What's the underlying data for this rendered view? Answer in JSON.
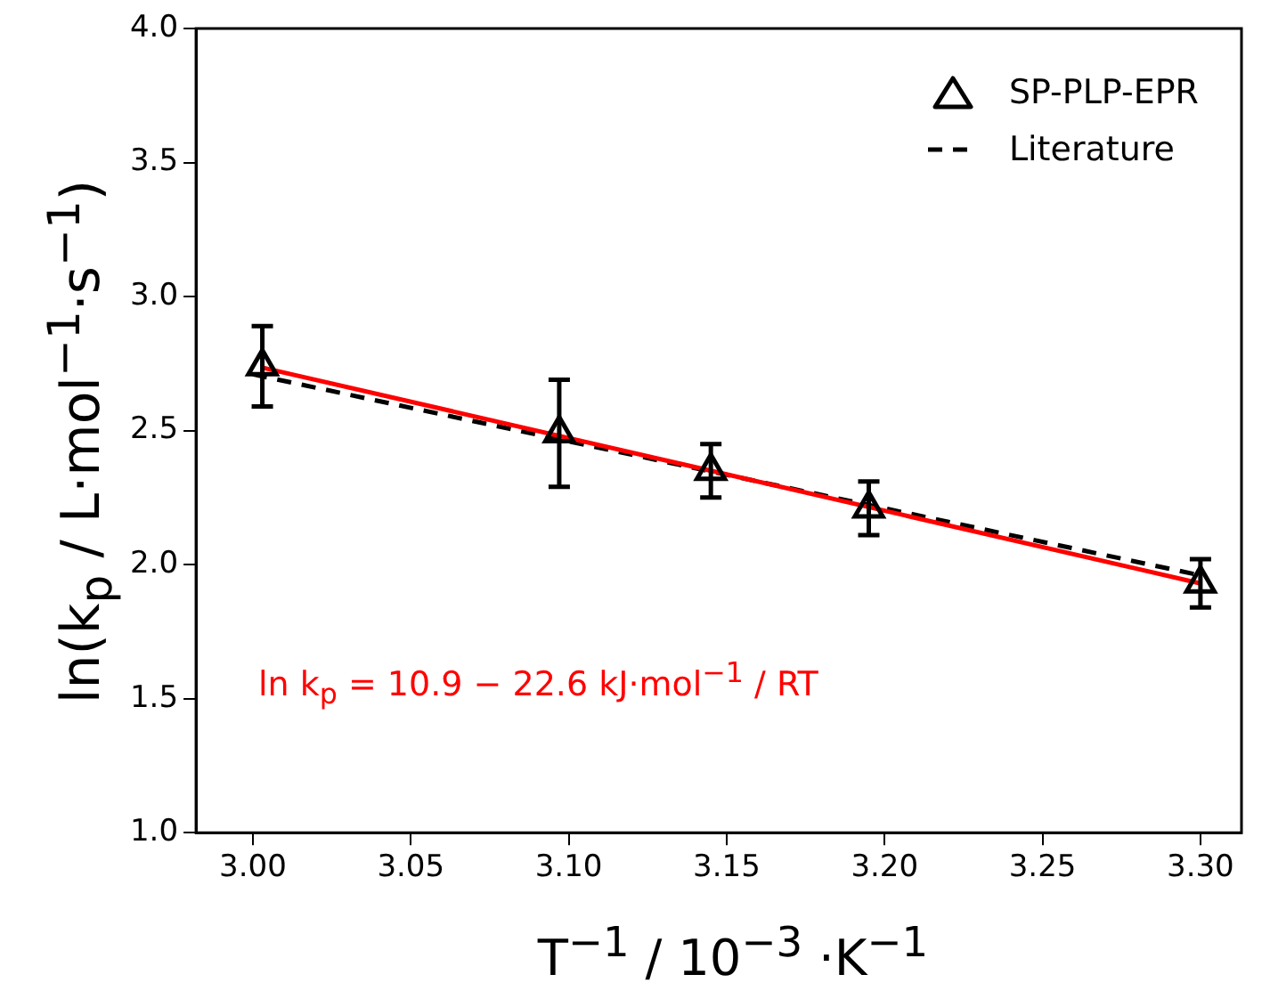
{
  "chart_data": {
    "type": "scatter",
    "xlabel": "T$^{−1}$ / 10$^{−3}$ ·K$^{−1}$",
    "ylabel": "ln(k$_{p}$ / L·mol$^{−1}$·s$^{−1}$)",
    "annotations": [
      "ln k$_{p}$ = 10.9 − 22.6 kJ·mol$^{−1}$ / RT"
    ],
    "series": [
      {
        "name": "SP-PLP-EPR",
        "marker": "triangle",
        "color": "#000000",
        "x": [
          3.003,
          3.097,
          3.145,
          3.195,
          3.3
        ],
        "values": [
          2.74,
          2.49,
          2.35,
          2.21,
          1.93
        ],
        "errors": [
          0.15,
          0.2,
          0.1,
          0.1,
          0.09
        ]
      },
      {
        "type": "line",
        "line_style": "solid",
        "color": "#ff0000",
        "x": [
          3.003,
          3.3
        ],
        "values": [
          2.735,
          1.93
        ]
      },
      {
        "name": "Literature",
        "type": "line",
        "line_style": "dashed",
        "color": "#000000",
        "x": [
          3.0,
          3.3
        ],
        "values": [
          2.71,
          1.96
        ]
      }
    ],
    "xlim": [
      2.982,
      3.313
    ],
    "ylim": [
      1.0,
      4.0
    ],
    "xticks": [
      {
        "value": 3.0,
        "label": "3.00"
      },
      {
        "value": 3.05,
        "label": "3.05"
      },
      {
        "value": 3.1,
        "label": "3.10"
      },
      {
        "value": 3.15,
        "label": "3.15"
      },
      {
        "value": 3.2,
        "label": "3.20"
      },
      {
        "value": 3.25,
        "label": "3.25"
      },
      {
        "value": 3.3,
        "label": "3.30"
      }
    ],
    "yticks": [
      {
        "value": 1,
        "label": "1.0"
      },
      {
        "value": 1.5,
        "label": "1.5"
      },
      {
        "value": 2,
        "label": "2.0"
      },
      {
        "value": 2.5,
        "label": "2.5"
      },
      {
        "value": 3,
        "label": "3.0"
      },
      {
        "value": 3.5,
        "label": "3.5"
      },
      {
        "value": 4,
        "label": "4.0"
      }
    ],
    "grid": false,
    "legend": "top right"
  }
}
